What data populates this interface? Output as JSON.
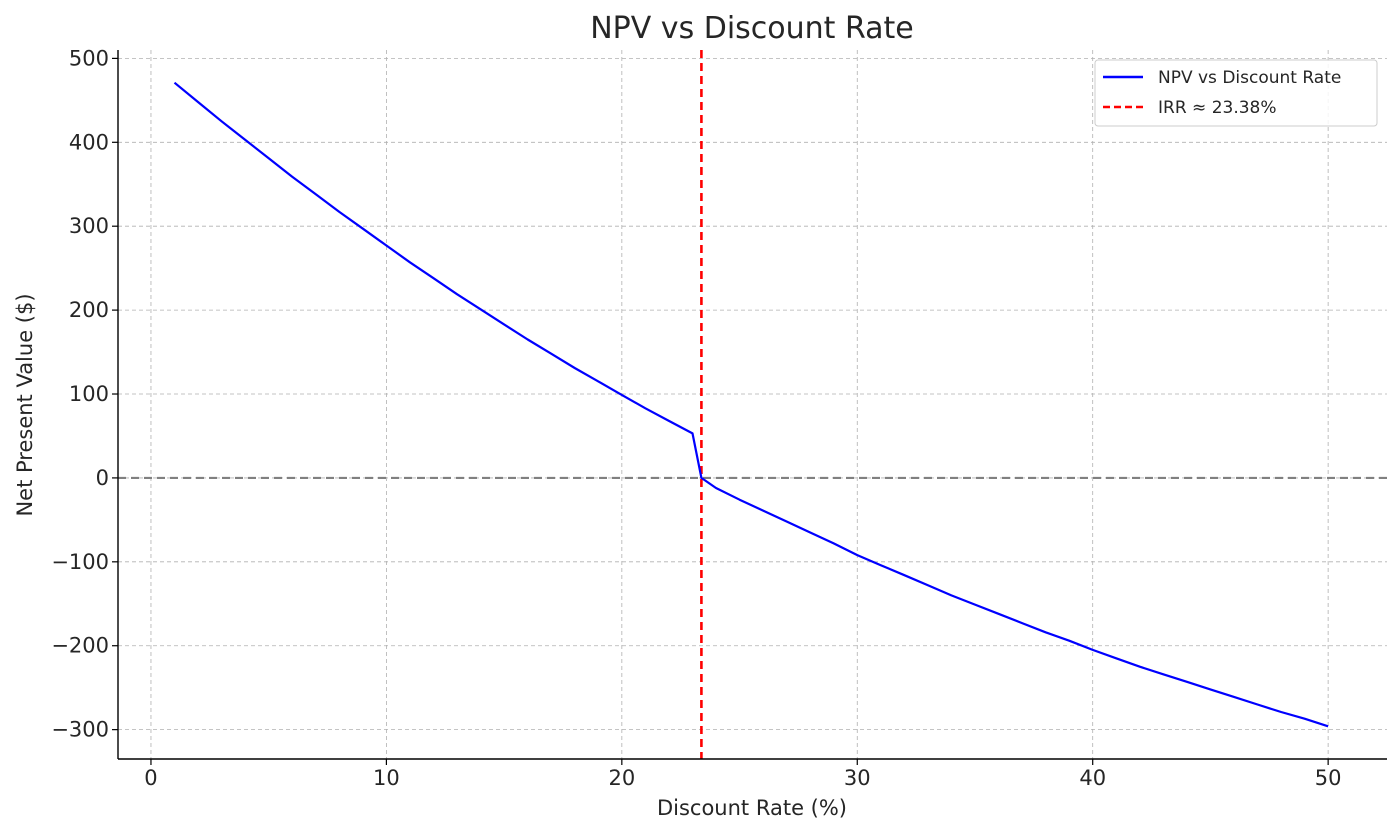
{
  "chart_data": {
    "type": "line",
    "title": "NPV vs Discount Rate",
    "xlabel": "Discount Rate (%)",
    "ylabel": "Net Present Value ($)",
    "xlim": [
      -1.4,
      52.5
    ],
    "ylim": [
      -335,
      510
    ],
    "x_ticks": [
      0,
      10,
      20,
      30,
      40,
      50
    ],
    "y_ticks": [
      -300,
      -200,
      -100,
      0,
      100,
      200,
      300,
      400,
      500
    ],
    "x_tick_labels": [
      "0",
      "10",
      "20",
      "30",
      "40",
      "50"
    ],
    "y_tick_labels": [
      "−300",
      "−200",
      "−100",
      "0",
      "100",
      "200",
      "300",
      "400",
      "500"
    ],
    "grid": true,
    "legend_position": "top-right",
    "series": [
      {
        "name": "NPV vs Discount Rate",
        "color": "#0000ff",
        "style": "solid",
        "x": [
          1,
          2,
          3,
          4,
          5,
          6,
          7,
          8,
          9,
          10,
          11,
          12,
          13,
          14,
          15,
          16,
          17,
          18,
          19,
          20,
          21,
          22,
          23,
          23.38,
          24,
          25,
          26,
          27,
          28,
          29,
          30,
          31,
          32,
          33,
          34,
          35,
          36,
          37,
          38,
          39,
          40,
          41,
          42,
          43,
          44,
          45,
          46,
          47,
          48,
          49,
          50
        ],
        "y": [
          471,
          448,
          425,
          403,
          381,
          359,
          338,
          317,
          297,
          277,
          257,
          238,
          219,
          201,
          183,
          165,
          148,
          131,
          115,
          99,
          83,
          68,
          53,
          0,
          -12,
          -26,
          -39,
          -52,
          -65,
          -78,
          -92,
          -104,
          -116,
          -128,
          -140,
          -151,
          -162,
          -173,
          -184,
          -194,
          -205,
          -215,
          -225,
          -234,
          -243,
          -252,
          -261,
          -270,
          -279,
          -287,
          -296
        ]
      }
    ],
    "reference_lines": [
      {
        "name": "IRR ≈ 23.38%",
        "orientation": "vertical",
        "x": 23.38,
        "color": "#ff0000",
        "style": "dashed"
      },
      {
        "orientation": "horizontal",
        "y": 0,
        "color": "#808080",
        "style": "dashed"
      }
    ],
    "legend": [
      {
        "label": "NPV vs Discount Rate",
        "color": "#0000ff",
        "style": "solid"
      },
      {
        "label": "IRR ≈ 23.38%",
        "color": "#ff0000",
        "style": "dashed"
      }
    ]
  }
}
